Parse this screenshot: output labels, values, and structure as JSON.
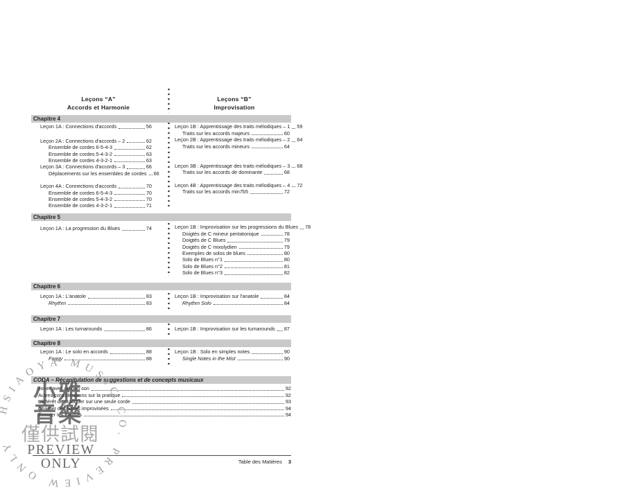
{
  "header": {
    "col_a": {
      "line1": "Leçons “A”",
      "line2": "Accords et Harmonie"
    },
    "col_b": {
      "line1": "Leçons “B”",
      "line2": "Improvisation"
    }
  },
  "chapters": [
    {
      "title": "Chapitre 4",
      "left": [
        {
          "text": "Leçon 1A : Connections d'accords",
          "page": "56"
        },
        {
          "text": "Leçon 2A : Connections d'accords – 2",
          "page": "62",
          "gap": 11
        },
        {
          "text": "Ensemble de cordes 6-5-4-3",
          "page": "62",
          "indent": true
        },
        {
          "text": "Ensemble de cordes 5-4-3-2",
          "page": "63",
          "indent": true
        },
        {
          "text": "Ensemble de cordes 4-3-2-1",
          "page": "63",
          "indent": true
        },
        {
          "text": "Leçon 3A : Connections d'accords – 3",
          "page": "66"
        },
        {
          "text": "Déplacements sur les ensembles de cordes",
          "page": "66",
          "indent": true
        },
        {
          "text": "Leçon 4A : Connections d'accords",
          "page": "70",
          "gap": 9
        },
        {
          "text": "Ensemble de cordes 6-5-4-3",
          "page": "70",
          "indent": true
        },
        {
          "text": "Ensemble de cordes 5-4-3-2",
          "page": "70",
          "indent": true
        },
        {
          "text": "Ensemble de cordes 4-3-2-1",
          "page": "71",
          "indent": true
        }
      ],
      "right": [
        {
          "text": "Leçon 1B : Apprentissage des traits mélodiques – 1",
          "page": "59"
        },
        {
          "text": "Traits sur les accords majeurs",
          "page": "60",
          "indent": true
        },
        {
          "text": "Leçon 2B : Apprentissage des traits mélodiques – 2",
          "page": "64"
        },
        {
          "text": "Traits sur les accords mineurs",
          "page": "64",
          "indent": true
        },
        {
          "text": "Leçon 3B : Apprentissage des traits mélodiques – 3",
          "page": "68",
          "gap": 19
        },
        {
          "text": "Traits sur les accords de dominante",
          "page": "68",
          "indent": true
        },
        {
          "text": "Leçon 4B : Apprentissage des traits mélodiques – 4",
          "page": "72",
          "gap": 9
        },
        {
          "text": "Traits sur les accords min7b5",
          "page": "72",
          "indent": true
        }
      ]
    },
    {
      "title": "Chapitre 5",
      "left": [
        {
          "text": "Leçon 1A : La progression du Blues",
          "page": "74",
          "gap": 2
        }
      ],
      "right": [
        {
          "text": "Leçon 1B : Improvisation sur les progressions du Blues",
          "page": "78"
        },
        {
          "text": "Doigtés de C mineur pentatonique",
          "page": "78",
          "indent": true
        },
        {
          "text": "Doigtés de C Blues",
          "page": "79",
          "indent": true
        },
        {
          "text": "Doigtés de C mixolydien",
          "page": "79",
          "indent": true
        },
        {
          "text": "Exemples de solos de blues",
          "page": "80",
          "indent": true
        },
        {
          "text": "Solo de Blues n°1",
          "page": "80",
          "indent": true
        },
        {
          "text": "Solo de Blues n°2",
          "page": "81",
          "indent": true
        },
        {
          "text": "Solo de Blues n°3",
          "page": "82",
          "indent": true
        }
      ]
    },
    {
      "title": "Chapitre 6",
      "left": [
        {
          "text": "Leçon 1A : L'anatole",
          "page": "83"
        },
        {
          "text": "Rhythm",
          "page": "83",
          "indent": true,
          "italic": true
        }
      ],
      "right": [
        {
          "text": "Leçon 1B : Improvisation sur l'anatole",
          "page": "84"
        },
        {
          "text": "Rhythm Solo",
          "page": "84",
          "indent": true,
          "italic": true
        }
      ]
    },
    {
      "title": "Chapitre 7",
      "left": [
        {
          "text": "Leçon 1A : Les turnarounds",
          "page": "86",
          "gap": 2
        }
      ],
      "right": [
        {
          "text": "Leçon 1B : Improvisation sur les turnarounds",
          "page": "87",
          "gap": 2
        }
      ]
    },
    {
      "title": "Chapitre 8",
      "left": [
        {
          "text": "Leçon 1A : Le solo en accords",
          "page": "88"
        },
        {
          "text": "Foggy",
          "page": "88",
          "indent": true,
          "italic": true
        }
      ],
      "right": [
        {
          "text": "Leçon 1B : Solo en simples notes",
          "page": "90"
        },
        {
          "text": "Single Notes in the Mist",
          "page": "90",
          "indent": true,
          "italic": true
        }
      ]
    }
  ],
  "coda": {
    "title": "CODA – Récapitulation de suggestions et de concepts musicaux",
    "items": [
      {
        "text": "Jouer avec un bon son",
        "page": "92"
      },
      {
        "text": "Autres considérations sur la pratique",
        "page": "92"
      },
      {
        "text": "L'intérêt de pratiquer sur une seule corde",
        "page": "93"
      },
      {
        "text": "Chanter des lignes improvisées",
        "page": "94"
      },
      {
        "text": "Écouter les maîtres",
        "page": "94"
      }
    ]
  },
  "footer": {
    "label": "Table des Matières",
    "page": "3"
  },
  "watermark": {
    "ring_text": "HSIAOYA MUSIC CO. PREVIEW ONLY",
    "cjk_line1": "小雅",
    "cjk_line2": "音樂",
    "cjk_line3": "僅供試閱",
    "latin_line1": "PREVIEW",
    "latin_line2": "ONLY"
  },
  "colors": {
    "chapter_bar": "#c9c9c9",
    "text": "#1e1e1e",
    "watermark_gray": "#8d8d8d"
  }
}
